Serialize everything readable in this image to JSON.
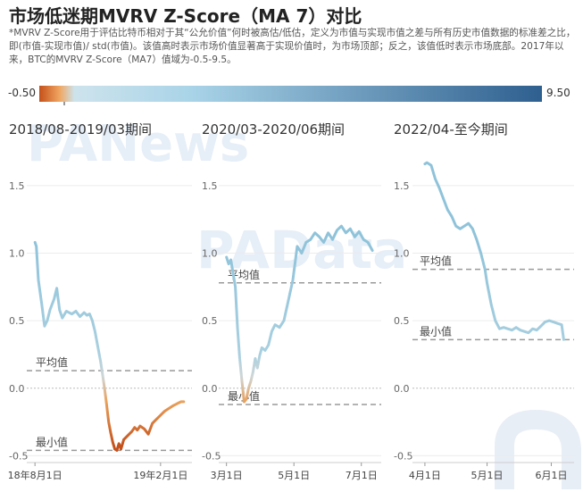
{
  "title": "市场低迷期MVRV Z-Score（MA 7）对比",
  "description": "*MVRV Z-Score用于评估比特币相对于其“公允价值”何时被高估/低估，定义为市值与实现市值之差与所有历史市值数据的标准差之比，即(市值-实现市值)/ std(市值)。该值高时表示市场价值显著高于实现价值时，为市场顶部；反之，该值低时表示市场底部。2017年以来，BTC的MVRV Z-Score（MA7）值域为-0.5-9.5。",
  "color_scale": {
    "min_label": "-0.50",
    "max_label": "9.50",
    "min": -0.5,
    "max": 9.5,
    "colors": [
      "#c4501a",
      "#f0a560",
      "#a9d4e8",
      "#2e5f8f"
    ]
  },
  "watermarks": [
    "PANews",
    "PAData"
  ],
  "chart_data": [
    {
      "type": "line",
      "title": "2018/08-2019/03期间",
      "ylim": [
        -0.55,
        1.75
      ],
      "yticks": [
        "1.5",
        "1.0",
        "0.5",
        "0.0",
        "-0.5"
      ],
      "xticks": [
        {
          "x": 0,
          "label": "18年8月1日"
        },
        {
          "x": 184,
          "label": "19年2月1日"
        }
      ],
      "x_range": [
        -12,
        230
      ],
      "reference_lines": [
        {
          "label": "平均值",
          "value": 0.13
        },
        {
          "label": "最小值",
          "value": -0.46
        }
      ],
      "series": [
        {
          "x": [
            0,
            2,
            5,
            10,
            14,
            18,
            22,
            28,
            32,
            36,
            40,
            46,
            50,
            54,
            60,
            66,
            72,
            76,
            80,
            84,
            88,
            92,
            96,
            99,
            102,
            105,
            108,
            111,
            114,
            117,
            120,
            123,
            126,
            130,
            134,
            138,
            142,
            146,
            150,
            154,
            160,
            166,
            172,
            178,
            184,
            190,
            196,
            202,
            206,
            210,
            214,
            218
          ],
          "y": [
            1.08,
            1.05,
            0.8,
            0.62,
            0.46,
            0.5,
            0.58,
            0.66,
            0.74,
            0.58,
            0.52,
            0.57,
            0.56,
            0.55,
            0.57,
            0.53,
            0.56,
            0.54,
            0.55,
            0.5,
            0.42,
            0.31,
            0.2,
            0.1,
            0.0,
            -0.12,
            -0.25,
            -0.33,
            -0.4,
            -0.45,
            -0.46,
            -0.41,
            -0.45,
            -0.38,
            -0.36,
            -0.34,
            -0.32,
            -0.29,
            -0.31,
            -0.28,
            -0.3,
            -0.34,
            -0.26,
            -0.23,
            -0.2,
            -0.17,
            -0.15,
            -0.13,
            -0.12,
            -0.11,
            -0.1,
            -0.1
          ]
        }
      ]
    },
    {
      "type": "line",
      "title": "2020/03-2020/06期间",
      "ylim": [
        -0.55,
        1.75
      ],
      "yticks": [
        "1.5",
        "1.0",
        "0.5",
        "0.0",
        "-0.5"
      ],
      "xticks": [
        {
          "x": 0,
          "label": "3月1日"
        },
        {
          "x": 61,
          "label": "5月1日"
        },
        {
          "x": 122,
          "label": "7月1日"
        }
      ],
      "x_range": [
        -7,
        140
      ],
      "reference_lines": [
        {
          "label": "平均值",
          "value": 0.78
        },
        {
          "label": "最小值",
          "value": -0.12
        }
      ],
      "series": [
        {
          "x": [
            0,
            2,
            4,
            6,
            8,
            10,
            12,
            14,
            16,
            18,
            20,
            22,
            24,
            26,
            28,
            30,
            32,
            35,
            38,
            41,
            44,
            48,
            52,
            56,
            60,
            64,
            68,
            72,
            76,
            80,
            84,
            88,
            92,
            96,
            100,
            104,
            108,
            112,
            116,
            120,
            124,
            128,
            132
          ],
          "y": [
            0.97,
            0.92,
            0.95,
            0.85,
            0.75,
            0.45,
            0.22,
            0.05,
            -0.1,
            -0.08,
            0.0,
            0.05,
            0.12,
            0.22,
            0.15,
            0.24,
            0.3,
            0.28,
            0.32,
            0.42,
            0.47,
            0.45,
            0.5,
            0.65,
            0.8,
            1.05,
            1.0,
            1.08,
            1.1,
            1.15,
            1.12,
            1.08,
            1.15,
            1.1,
            1.17,
            1.2,
            1.15,
            1.18,
            1.12,
            1.16,
            1.1,
            1.08,
            1.02
          ]
        }
      ]
    },
    {
      "type": "line",
      "title": "2022/04-至今期间",
      "ylim": [
        -0.55,
        1.75
      ],
      "yticks": [
        "1.5",
        "1.0",
        "0.5",
        "0.0",
        "-0.5"
      ],
      "xticks": [
        {
          "x": 0,
          "label": "4月1日"
        },
        {
          "x": 30,
          "label": "5月1日"
        },
        {
          "x": 61,
          "label": "6月1日"
        }
      ],
      "x_range": [
        -6,
        72
      ],
      "reference_lines": [
        {
          "label": "平均值",
          "value": 0.88
        },
        {
          "label": "最小值",
          "value": 0.36
        }
      ],
      "series": [
        {
          "x": [
            0,
            1,
            3,
            5,
            7,
            9,
            11,
            13,
            15,
            17,
            19,
            21,
            23,
            25,
            27,
            29,
            30,
            32,
            34,
            36,
            38,
            40,
            42,
            44,
            46,
            48,
            50,
            52,
            54,
            56,
            58,
            60,
            62,
            64,
            66,
            67
          ],
          "y": [
            1.66,
            1.67,
            1.65,
            1.55,
            1.48,
            1.4,
            1.32,
            1.27,
            1.2,
            1.18,
            1.2,
            1.22,
            1.18,
            1.1,
            1.0,
            0.88,
            0.78,
            0.62,
            0.5,
            0.44,
            0.45,
            0.44,
            0.43,
            0.45,
            0.43,
            0.42,
            0.41,
            0.44,
            0.43,
            0.46,
            0.49,
            0.5,
            0.49,
            0.48,
            0.47,
            0.36
          ]
        }
      ]
    }
  ]
}
